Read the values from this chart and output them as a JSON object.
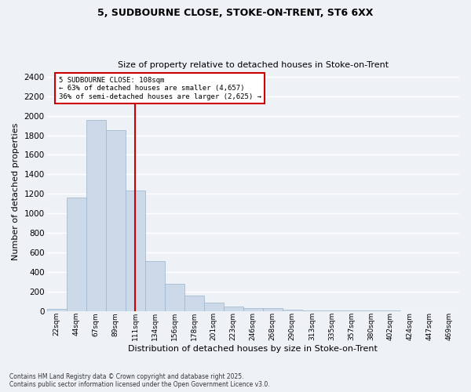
{
  "title1": "5, SUDBOURNE CLOSE, STOKE-ON-TRENT, ST6 6XX",
  "title2": "Size of property relative to detached houses in Stoke-on-Trent",
  "xlabel": "Distribution of detached houses by size in Stoke-on-Trent",
  "ylabel": "Number of detached properties",
  "bin_labels": [
    "22sqm",
    "44sqm",
    "67sqm",
    "89sqm",
    "111sqm",
    "134sqm",
    "156sqm",
    "178sqm",
    "201sqm",
    "223sqm",
    "246sqm",
    "268sqm",
    "290sqm",
    "313sqm",
    "335sqm",
    "357sqm",
    "380sqm",
    "402sqm",
    "424sqm",
    "447sqm",
    "469sqm"
  ],
  "bar_heights": [
    22,
    1160,
    1960,
    1850,
    1230,
    510,
    275,
    155,
    85,
    45,
    32,
    28,
    15,
    8,
    5,
    3,
    2,
    2,
    1,
    1,
    1
  ],
  "bar_color": "#ccd9e8",
  "bar_edgecolor": "#9ab4cc",
  "vline_color": "#cc0000",
  "annotation_text": "5 SUDBOURNE CLOSE: 108sqm\n← 63% of detached houses are smaller (4,657)\n36% of semi-detached houses are larger (2,625) →",
  "annotation_box_color": "#cc0000",
  "ylim": [
    0,
    2450
  ],
  "yticks": [
    0,
    200,
    400,
    600,
    800,
    1000,
    1200,
    1400,
    1600,
    1800,
    2000,
    2200,
    2400
  ],
  "bg_color": "#eef2f7",
  "plot_bg_color": "#eef2f7",
  "grid_color": "#ffffff",
  "footer_line1": "Contains HM Land Registry data © Crown copyright and database right 2025.",
  "footer_line2": "Contains public sector information licensed under the Open Government Licence v3.0."
}
